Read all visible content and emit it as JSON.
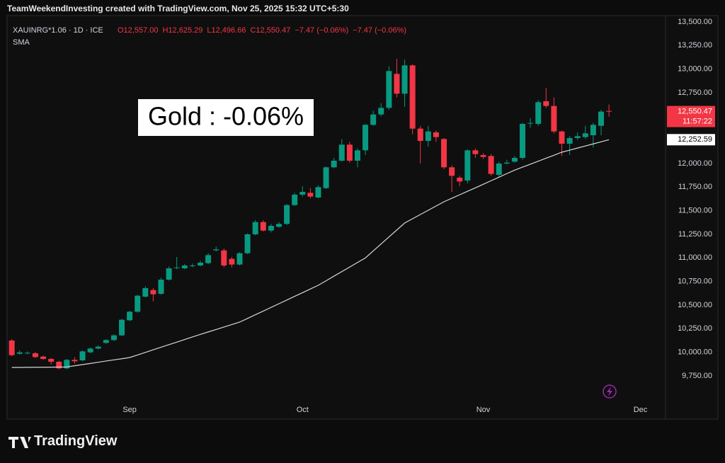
{
  "header": "TeamWeekendInvesting created with TradingView.com, Nov 25, 2025 15:32 UTC+5:30",
  "footer": "TradingView",
  "chart_data": {
    "type": "candlestick",
    "legend": {
      "symbol": "XAUINRG*1.06 · 1D · ICE",
      "items": [
        "O12,557.00",
        "H12,625.29",
        "L12,496.66",
        "C12,550.47",
        "−7.47 (−0.06%)",
        "−7.47 (−0.06%)"
      ],
      "indicator": "SMA"
    },
    "annotation": "Gold : -0.06%",
    "colors": {
      "up": "#089981",
      "down": "#f23645"
    },
    "xlim": [
      -0.6,
      83.2
    ],
    "xticks": [
      {
        "value": 15,
        "label": "Sep"
      },
      {
        "value": 37,
        "label": "Oct"
      },
      {
        "value": 60,
        "label": "Nov"
      },
      {
        "value": 80,
        "label": "Dec"
      }
    ],
    "ylim": [
      9292.5,
      13567.5
    ],
    "yticks": [
      {
        "value": 9750,
        "label": "9,750.00"
      },
      {
        "value": 10000,
        "label": "10,000.00"
      },
      {
        "value": 10250,
        "label": "10,250.00"
      },
      {
        "value": 10500,
        "label": "10,500.00"
      },
      {
        "value": 10750,
        "label": "10,750.00"
      },
      {
        "value": 11000,
        "label": "11,000.00"
      },
      {
        "value": 11250,
        "label": "11,250.00"
      },
      {
        "value": 11500,
        "label": "11,500.00"
      },
      {
        "value": 11750,
        "label": "11,750.00"
      },
      {
        "value": 12000,
        "label": "12,000.00"
      },
      {
        "value": 12250,
        "label": "12,250.00"
      },
      {
        "value": 12500,
        "label": "12,500.00"
      },
      {
        "value": 12750,
        "label": "12,750.00"
      },
      {
        "value": 13000,
        "label": "13,000.00"
      },
      {
        "value": 13250,
        "label": "13,250.00"
      },
      {
        "value": 13500,
        "label": "13,500.00"
      }
    ],
    "open": [
      10125,
      9985,
      9990,
      9990,
      9955,
      9930,
      9900,
      9830,
      9920,
      9915,
      10000,
      10040,
      10100,
      10130,
      10180,
      10340,
      10430,
      10590,
      10660,
      10620,
      10770,
      10895,
      10890,
      10915,
      10920,
      10945,
      11080,
      11080,
      10990,
      10930,
      11050,
      11250,
      11380,
      11290,
      11330,
      11360,
      11560,
      11670,
      11690,
      11640,
      11740,
      11960,
      12030,
      12200,
      12030,
      12140,
      12410,
      12520,
      12590,
      12950,
      12740,
      13040,
      12370,
      12240,
      12330,
      12260,
      11960,
      11850,
      11820,
      12140,
      12090,
      12080,
      11880,
      12000,
      12020,
      12060,
      12425,
      12420,
      12660,
      12610,
      12340,
      12210,
      12270,
      12280,
      12300,
      12400,
      12557
    ],
    "high": [
      10140,
      10020,
      10010,
      10005,
      9965,
      9940,
      9910,
      9930,
      9950,
      10020,
      10050,
      10075,
      10140,
      10190,
      10355,
      10440,
      10610,
      10700,
      10680,
      10790,
      10910,
      11010,
      10935,
      10940,
      10970,
      11050,
      11120,
      11100,
      11010,
      11060,
      11260,
      11400,
      11400,
      11360,
      11380,
      11570,
      11690,
      11760,
      11740,
      11770,
      11970,
      12060,
      12260,
      12230,
      12160,
      12420,
      12560,
      12640,
      13030,
      13110,
      13100,
      13050,
      12400,
      12400,
      12350,
      12270,
      11980,
      11870,
      12150,
      12160,
      12110,
      12100,
      12020,
      12040,
      12080,
      12430,
      12480,
      12670,
      12800,
      12700,
      12350,
      12290,
      12330,
      12400,
      12430,
      12570,
      12625.29
    ],
    "low": [
      9960,
      9975,
      9980,
      9940,
      9920,
      9870,
      9820,
      9820,
      9880,
      9905,
      9990,
      10030,
      10090,
      10120,
      10170,
      10330,
      10420,
      10580,
      10540,
      10610,
      10760,
      10880,
      10880,
      10900,
      10910,
      10935,
      11070,
      10900,
      10900,
      10920,
      11040,
      11240,
      11280,
      11270,
      11320,
      11350,
      11550,
      11650,
      11630,
      11630,
      11730,
      11950,
      12020,
      12010,
      11960,
      12090,
      12400,
      12500,
      12570,
      12700,
      12600,
      12310,
      12000,
      12180,
      12230,
      11940,
      11700,
      11760,
      11790,
      12060,
      12050,
      11870,
      11860,
      11990,
      12010,
      12040,
      12380,
      12400,
      12590,
      12320,
      12080,
      12090,
      12250,
      12260,
      12170,
      12300,
      12496.66
    ],
    "close": [
      9970,
      10000,
      9995,
      9950,
      9930,
      9900,
      9830,
      9920,
      9905,
      10010,
      10040,
      10060,
      10130,
      10180,
      10345,
      10430,
      10600,
      10680,
      10615,
      10770,
      10890,
      10900,
      10920,
      10920,
      10950,
      11030,
      11090,
      10920,
      10930,
      11050,
      11250,
      11380,
      11290,
      11340,
      11360,
      11560,
      11670,
      11700,
      11650,
      11750,
      11960,
      12030,
      12200,
      12030,
      12140,
      12410,
      12520,
      12590,
      12980,
      12740,
      13040,
      12370,
      12240,
      12340,
      12280,
      11960,
      11870,
      11810,
      12140,
      12100,
      12070,
      11890,
      12000,
      12010,
      12060,
      12420,
      12430,
      12650,
      12610,
      12340,
      12210,
      12270,
      12290,
      12320,
      12410,
      12550,
      12550.47
    ],
    "last_price_label": "12,550.47",
    "countdown": "11:57:22",
    "sma": {
      "name": "SMA",
      "color": "#d6d6d6",
      "last_label": "12,252.59",
      "values": [
        9840,
        9840,
        9841,
        9842,
        9842,
        9843,
        9844,
        9845,
        9858,
        9870,
        9882,
        9895,
        9908,
        9920,
        9932,
        9945,
        9972,
        9999,
        10027,
        10054,
        10081,
        10108,
        10136,
        10163,
        10190,
        10216,
        10242,
        10268,
        10294,
        10320,
        10359,
        10398,
        10437,
        10476,
        10515,
        10554,
        10593,
        10632,
        10671,
        10710,
        10758,
        10807,
        10855,
        10903,
        10952,
        11000,
        11074,
        11148,
        11222,
        11296,
        11370,
        11415,
        11460,
        11505,
        11550,
        11595,
        11632,
        11669,
        11706,
        11743,
        11780,
        11818,
        11855,
        11893,
        11930,
        11962,
        11993,
        12025,
        12057,
        12088,
        12120,
        12142,
        12164,
        12186,
        12208,
        12230,
        12252.59
      ]
    }
  }
}
